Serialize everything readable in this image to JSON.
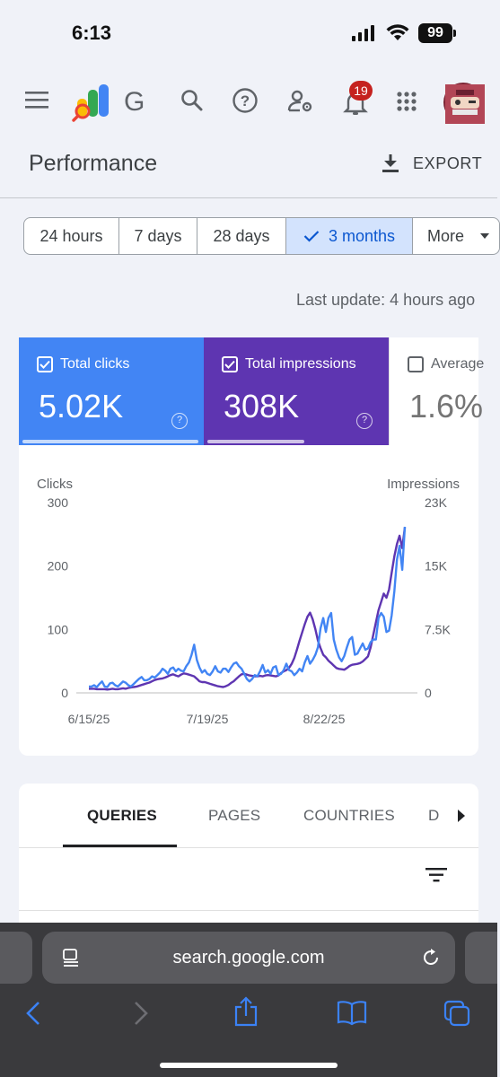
{
  "status_bar": {
    "time": "6:13",
    "battery": "99"
  },
  "app_bar": {
    "brand_text": "G",
    "notification_count": "19"
  },
  "page": {
    "title": "Performance",
    "export_label": "EXPORT"
  },
  "ranges": [
    {
      "label": "24 hours",
      "selected": false
    },
    {
      "label": "7 days",
      "selected": false
    },
    {
      "label": "28 days",
      "selected": false
    },
    {
      "label": "3 months",
      "selected": true
    },
    {
      "label": "More",
      "selected": false
    }
  ],
  "last_update": "Last update: 4 hours ago",
  "metrics": [
    {
      "label": "Total clicks",
      "value": "5.02K",
      "checked": true,
      "color": "#4285f4"
    },
    {
      "label": "Total impressions",
      "value": "308K",
      "checked": true,
      "color": "#5e35b1"
    },
    {
      "label": "Average",
      "value": "1.6%",
      "checked": false,
      "color": "#ffffff"
    }
  ],
  "chart_data": {
    "type": "line",
    "left_axis_label": "Clicks",
    "right_axis_label": "Impressions",
    "left_ticks": [
      "300",
      "200",
      "100",
      "0"
    ],
    "right_ticks": [
      "23K",
      "15K",
      "7.5K",
      "0"
    ],
    "x_ticks": [
      "6/15/25",
      "7/19/25",
      "8/22/25"
    ],
    "ylim_left": [
      0,
      300
    ],
    "ylim_right": [
      0,
      23000
    ],
    "grid": false,
    "series": [
      {
        "name": "Clicks",
        "axis": "left",
        "color": "#4285f4",
        "values": [
          10,
          10,
          12,
          9,
          14,
          18,
          10,
          9,
          15,
          16,
          12,
          10,
          14,
          18,
          16,
          12,
          10,
          14,
          18,
          22,
          25,
          20,
          20,
          22,
          26,
          24,
          28,
          32,
          38,
          35,
          30,
          38,
          40,
          34,
          38,
          35,
          34,
          42,
          48,
          60,
          76,
          52,
          40,
          32,
          36,
          30,
          28,
          34,
          42,
          34,
          32,
          38,
          38,
          33,
          40,
          46,
          48,
          42,
          38,
          30,
          22,
          18,
          22,
          28,
          26,
          34,
          44,
          32,
          36,
          30,
          40,
          42,
          28,
          30,
          36,
          46,
          36,
          34,
          28,
          32,
          38,
          34,
          48,
          58,
          46,
          52,
          60,
          72,
          102,
          118,
          96,
          118,
          126,
          84,
          68,
          56,
          50,
          58,
          72,
          84,
          88,
          60,
          62,
          70,
          78,
          68,
          70,
          80,
          84,
          84,
          118,
          126,
          120,
          96,
          98,
          122,
          160,
          210,
          232,
          194,
          262
        ]
      },
      {
        "name": "Impressions",
        "axis": "right",
        "color": "#5e35b1",
        "values": [
          500,
          500,
          500,
          450,
          450,
          450,
          450,
          400,
          450,
          500,
          450,
          450,
          500,
          550,
          500,
          600,
          650,
          700,
          750,
          850,
          950,
          1050,
          1150,
          1250,
          1400,
          1550,
          1650,
          1700,
          1750,
          1850,
          2000,
          2150,
          2250,
          2100,
          2000,
          2200,
          2350,
          2300,
          2200,
          2100,
          2000,
          1700,
          1400,
          1300,
          1300,
          1200,
          1100,
          1000,
          900,
          800,
          750,
          700,
          800,
          950,
          1200,
          1400,
          1700,
          2000,
          2250,
          2300,
          2200,
          2100,
          2050,
          2000,
          2000,
          2050,
          2000,
          2100,
          2150,
          2100,
          2050,
          2000,
          2100,
          2400,
          2600,
          2750,
          3000,
          3500,
          4200,
          5200,
          6300,
          7300,
          8300,
          9200,
          9700,
          8900,
          7700,
          6300,
          5400,
          4600,
          4300,
          3900,
          3600,
          3300,
          3000,
          2900,
          2850,
          2800,
          3000,
          3250,
          3400,
          3450,
          3500,
          3600,
          3800,
          4100,
          4400,
          5500,
          7000,
          8500,
          10000,
          11000,
          12000,
          11500,
          12500,
          14500,
          16500,
          18000,
          19000,
          17500,
          20000
        ]
      }
    ]
  },
  "tabs": [
    "QUERIES",
    "PAGES",
    "COUNTRIES",
    "D"
  ],
  "browser": {
    "url": "search.google.com"
  }
}
